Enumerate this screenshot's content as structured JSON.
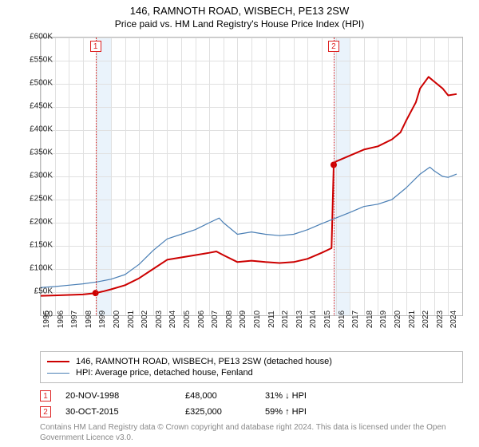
{
  "title": "146, RAMNOTH ROAD, WISBECH, PE13 2SW",
  "subtitle": "Price paid vs. HM Land Registry's House Price Index (HPI)",
  "chart": {
    "type": "line",
    "ylim": [
      0,
      600000
    ],
    "ytick_step": 50000,
    "ytick_labels": [
      "£0",
      "£50K",
      "£100K",
      "£150K",
      "£200K",
      "£250K",
      "£300K",
      "£350K",
      "£400K",
      "£450K",
      "£500K",
      "£550K",
      "£600K"
    ],
    "x_years": [
      1995,
      1996,
      1997,
      1998,
      1999,
      2000,
      2001,
      2002,
      2003,
      2004,
      2005,
      2006,
      2007,
      2008,
      2009,
      2010,
      2011,
      2012,
      2013,
      2014,
      2015,
      2016,
      2017,
      2018,
      2019,
      2020,
      2021,
      2022,
      2023,
      2024
    ],
    "x_min_year": 1995,
    "x_max_year": 2025,
    "grid_color": "#e0e0e0",
    "background_color": "#ffffff",
    "band_color": "#eaf3fb",
    "bands": [
      {
        "start": 1998.9,
        "end": 2000
      },
      {
        "start": 2015.85,
        "end": 2017
      }
    ],
    "dash_lines": [
      1998.9,
      2015.85
    ],
    "marker_boxes": [
      {
        "label": "1",
        "year": 1998.9
      },
      {
        "label": "2",
        "year": 2015.85
      }
    ],
    "series": [
      {
        "name": "property",
        "legend_label": "146, RAMNOTH ROAD, WISBECH, PE13 2SW (detached house)",
        "color": "#cc0000",
        "width": 2,
        "points": [
          [
            1995,
            42000
          ],
          [
            1996,
            43000
          ],
          [
            1997,
            44000
          ],
          [
            1998,
            45000
          ],
          [
            1998.9,
            48000
          ],
          [
            1999.5,
            52000
          ],
          [
            2000,
            56000
          ],
          [
            2001,
            65000
          ],
          [
            2002,
            80000
          ],
          [
            2003,
            100000
          ],
          [
            2004,
            120000
          ],
          [
            2005,
            125000
          ],
          [
            2006,
            130000
          ],
          [
            2007,
            135000
          ],
          [
            2007.5,
            138000
          ],
          [
            2008,
            130000
          ],
          [
            2009,
            115000
          ],
          [
            2010,
            118000
          ],
          [
            2011,
            115000
          ],
          [
            2012,
            113000
          ],
          [
            2013,
            115000
          ],
          [
            2014,
            122000
          ],
          [
            2015,
            135000
          ],
          [
            2015.7,
            145000
          ],
          [
            2015.85,
            325000
          ],
          [
            2016,
            332000
          ],
          [
            2017,
            345000
          ],
          [
            2018,
            358000
          ],
          [
            2019,
            365000
          ],
          [
            2020,
            380000
          ],
          [
            2020.6,
            395000
          ],
          [
            2021,
            420000
          ],
          [
            2021.7,
            460000
          ],
          [
            2022,
            490000
          ],
          [
            2022.6,
            515000
          ],
          [
            2023,
            505000
          ],
          [
            2023.6,
            490000
          ],
          [
            2024,
            475000
          ],
          [
            2024.6,
            478000
          ]
        ],
        "sale_dots": [
          {
            "year": 1998.9,
            "value": 48000
          },
          {
            "year": 2015.85,
            "value": 325000
          }
        ]
      },
      {
        "name": "hpi",
        "legend_label": "HPI: Average price, detached house, Fenland",
        "color": "#4a7fb5",
        "width": 1.2,
        "points": [
          [
            1995,
            60000
          ],
          [
            1996,
            62000
          ],
          [
            1997,
            65000
          ],
          [
            1998,
            68000
          ],
          [
            1999,
            72000
          ],
          [
            2000,
            78000
          ],
          [
            2001,
            88000
          ],
          [
            2002,
            110000
          ],
          [
            2003,
            140000
          ],
          [
            2004,
            165000
          ],
          [
            2005,
            175000
          ],
          [
            2006,
            185000
          ],
          [
            2007,
            200000
          ],
          [
            2007.7,
            210000
          ],
          [
            2008,
            200000
          ],
          [
            2009,
            175000
          ],
          [
            2010,
            180000
          ],
          [
            2011,
            175000
          ],
          [
            2012,
            172000
          ],
          [
            2013,
            175000
          ],
          [
            2014,
            185000
          ],
          [
            2015,
            198000
          ],
          [
            2016,
            210000
          ],
          [
            2017,
            222000
          ],
          [
            2018,
            235000
          ],
          [
            2019,
            240000
          ],
          [
            2020,
            250000
          ],
          [
            2021,
            275000
          ],
          [
            2022,
            305000
          ],
          [
            2022.7,
            320000
          ],
          [
            2023,
            312000
          ],
          [
            2023.6,
            300000
          ],
          [
            2024,
            298000
          ],
          [
            2024.6,
            305000
          ]
        ]
      }
    ]
  },
  "legend_items": [
    {
      "color": "#cc0000",
      "label": "146, RAMNOTH ROAD, WISBECH, PE13 2SW (detached house)"
    },
    {
      "color": "#4a7fb5",
      "label": "HPI: Average price, detached house, Fenland"
    }
  ],
  "transactions": [
    {
      "marker": "1",
      "date": "20-NOV-1998",
      "price": "£48,000",
      "hpi": "31% ↓ HPI"
    },
    {
      "marker": "2",
      "date": "30-OCT-2015",
      "price": "£325,000",
      "hpi": "59% ↑ HPI"
    }
  ],
  "attribution": "Contains HM Land Registry data © Crown copyright and database right 2024. This data is licensed under the Open Government Licence v3.0."
}
